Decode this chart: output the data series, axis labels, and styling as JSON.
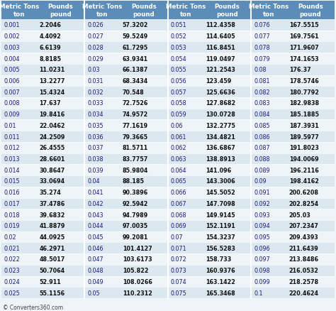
{
  "col_header_bg": "#5b8db8",
  "col_header_text": "#ffffff",
  "row_bg_even": "#dce8f0",
  "row_bg_odd": "#eef4f8",
  "text_color_metric": "#1a1a7a",
  "text_color_pounds": "#111111",
  "footer_text": "© Converters360.com",
  "header_line1_col1": "Metric Tons",
  "header_line2_col1": "ton",
  "header_line1_col2": "Pounds",
  "header_line2_col2": "pound",
  "columns": [
    {
      "metric": "0.001",
      "pounds": "2.2046"
    },
    {
      "metric": "0.002",
      "pounds": "4.4092"
    },
    {
      "metric": "0.003",
      "pounds": "6.6139"
    },
    {
      "metric": "0.004",
      "pounds": "8.8185"
    },
    {
      "metric": "0.005",
      "pounds": "11.0231"
    },
    {
      "metric": "0.006",
      "pounds": "13.2277"
    },
    {
      "metric": "0.007",
      "pounds": "15.4324"
    },
    {
      "metric": "0.008",
      "pounds": "17.637"
    },
    {
      "metric": "0.009",
      "pounds": "19.8416"
    },
    {
      "metric": "0.01",
      "pounds": "22.0462"
    },
    {
      "metric": "0.011",
      "pounds": "24.2509"
    },
    {
      "metric": "0.012",
      "pounds": "26.4555"
    },
    {
      "metric": "0.013",
      "pounds": "28.6601"
    },
    {
      "metric": "0.014",
      "pounds": "30.8647"
    },
    {
      "metric": "0.015",
      "pounds": "33.0694"
    },
    {
      "metric": "0.016",
      "pounds": "35.274"
    },
    {
      "metric": "0.017",
      "pounds": "37.4786"
    },
    {
      "metric": "0.018",
      "pounds": "39.6832"
    },
    {
      "metric": "0.019",
      "pounds": "41.8879"
    },
    {
      "metric": "0.02",
      "pounds": "44.0925"
    },
    {
      "metric": "0.021",
      "pounds": "46.2971"
    },
    {
      "metric": "0.022",
      "pounds": "48.5017"
    },
    {
      "metric": "0.023",
      "pounds": "50.7064"
    },
    {
      "metric": "0.024",
      "pounds": "52.911"
    },
    {
      "metric": "0.025",
      "pounds": "55.1156"
    },
    {
      "metric": "0.026",
      "pounds": "57.3202"
    },
    {
      "metric": "0.027",
      "pounds": "59.5249"
    },
    {
      "metric": "0.028",
      "pounds": "61.7295"
    },
    {
      "metric": "0.029",
      "pounds": "63.9341"
    },
    {
      "metric": "0.03",
      "pounds": "66.1387"
    },
    {
      "metric": "0.031",
      "pounds": "68.3434"
    },
    {
      "metric": "0.032",
      "pounds": "70.548"
    },
    {
      "metric": "0.033",
      "pounds": "72.7526"
    },
    {
      "metric": "0.034",
      "pounds": "74.9572"
    },
    {
      "metric": "0.035",
      "pounds": "77.1619"
    },
    {
      "metric": "0.036",
      "pounds": "79.3665"
    },
    {
      "metric": "0.037",
      "pounds": "81.5711"
    },
    {
      "metric": "0.038",
      "pounds": "83.7757"
    },
    {
      "metric": "0.039",
      "pounds": "85.9804"
    },
    {
      "metric": "0.04",
      "pounds": "88.185"
    },
    {
      "metric": "0.041",
      "pounds": "90.3896"
    },
    {
      "metric": "0.042",
      "pounds": "92.5942"
    },
    {
      "metric": "0.043",
      "pounds": "94.7989"
    },
    {
      "metric": "0.044",
      "pounds": "97.0035"
    },
    {
      "metric": "0.045",
      "pounds": "99.2081"
    },
    {
      "metric": "0.046",
      "pounds": "101.4127"
    },
    {
      "metric": "0.047",
      "pounds": "103.6173"
    },
    {
      "metric": "0.048",
      "pounds": "105.822"
    },
    {
      "metric": "0.049",
      "pounds": "108.0266"
    },
    {
      "metric": "0.05",
      "pounds": "110.2312"
    },
    {
      "metric": "0.051",
      "pounds": "112.4358"
    },
    {
      "metric": "0.052",
      "pounds": "114.6405"
    },
    {
      "metric": "0.053",
      "pounds": "116.8451"
    },
    {
      "metric": "0.054",
      "pounds": "119.0497"
    },
    {
      "metric": "0.055",
      "pounds": "121.2543"
    },
    {
      "metric": "0.056",
      "pounds": "123.459"
    },
    {
      "metric": "0.057",
      "pounds": "125.6636"
    },
    {
      "metric": "0.058",
      "pounds": "127.8682"
    },
    {
      "metric": "0.059",
      "pounds": "130.0728"
    },
    {
      "metric": "0.06",
      "pounds": "132.2775"
    },
    {
      "metric": "0.061",
      "pounds": "134.4821"
    },
    {
      "metric": "0.062",
      "pounds": "136.6867"
    },
    {
      "metric": "0.063",
      "pounds": "138.8913"
    },
    {
      "metric": "0.064",
      "pounds": "141.096"
    },
    {
      "metric": "0.065",
      "pounds": "143.3006"
    },
    {
      "metric": "0.066",
      "pounds": "145.5052"
    },
    {
      "metric": "0.067",
      "pounds": "147.7098"
    },
    {
      "metric": "0.068",
      "pounds": "149.9145"
    },
    {
      "metric": "0.069",
      "pounds": "152.1191"
    },
    {
      "metric": "0.07",
      "pounds": "154.3237"
    },
    {
      "metric": "0.071",
      "pounds": "156.5283"
    },
    {
      "metric": "0.072",
      "pounds": "158.733"
    },
    {
      "metric": "0.073",
      "pounds": "160.9376"
    },
    {
      "metric": "0.074",
      "pounds": "163.1422"
    },
    {
      "metric": "0.075",
      "pounds": "165.3468"
    },
    {
      "metric": "0.076",
      "pounds": "167.5515"
    },
    {
      "metric": "0.077",
      "pounds": "169.7561"
    },
    {
      "metric": "0.078",
      "pounds": "171.9607"
    },
    {
      "metric": "0.079",
      "pounds": "174.1653"
    },
    {
      "metric": "0.08",
      "pounds": "176.37"
    },
    {
      "metric": "0.081",
      "pounds": "178.5746"
    },
    {
      "metric": "0.082",
      "pounds": "180.7792"
    },
    {
      "metric": "0.083",
      "pounds": "182.9838"
    },
    {
      "metric": "0.084",
      "pounds": "185.1885"
    },
    {
      "metric": "0.085",
      "pounds": "187.3931"
    },
    {
      "metric": "0.086",
      "pounds": "189.5977"
    },
    {
      "metric": "0.087",
      "pounds": "191.8023"
    },
    {
      "metric": "0.088",
      "pounds": "194.0069"
    },
    {
      "metric": "0.089",
      "pounds": "196.2116"
    },
    {
      "metric": "0.09",
      "pounds": "198.4162"
    },
    {
      "metric": "0.091",
      "pounds": "200.6208"
    },
    {
      "metric": "0.092",
      "pounds": "202.8254"
    },
    {
      "metric": "0.093",
      "pounds": "205.03"
    },
    {
      "metric": "0.094",
      "pounds": "207.2347"
    },
    {
      "metric": "0.095",
      "pounds": "209.4393"
    },
    {
      "metric": "0.096",
      "pounds": "211.6439"
    },
    {
      "metric": "0.097",
      "pounds": "213.8486"
    },
    {
      "metric": "0.098",
      "pounds": "216.0532"
    },
    {
      "metric": "0.099",
      "pounds": "218.2578"
    },
    {
      "metric": "0.1",
      "pounds": "220.4624"
    }
  ]
}
